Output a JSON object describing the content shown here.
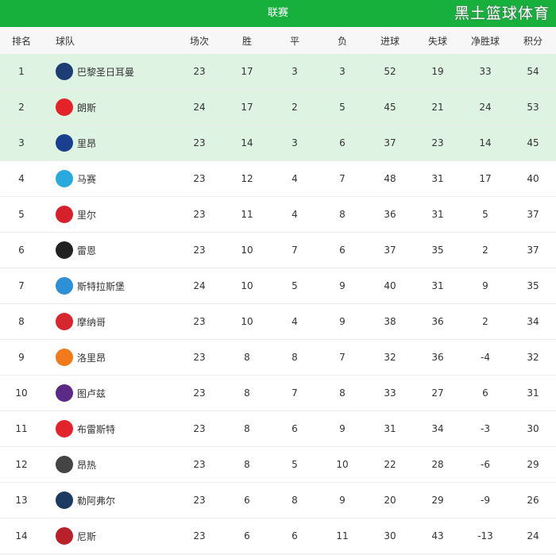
{
  "title": "联赛",
  "columns": [
    "排名",
    "球队",
    "场次",
    "胜",
    "平",
    "负",
    "进球",
    "失球",
    "净胜球",
    "积分"
  ],
  "rows": [
    {
      "rank": "1",
      "team": "巴黎圣日耳曼",
      "logo_color": "#1c3e74",
      "played": "23",
      "w": "17",
      "d": "3",
      "l": "3",
      "gf": "52",
      "ga": "19",
      "gd": "33",
      "pts": "54"
    },
    {
      "rank": "2",
      "team": "朗斯",
      "logo_color": "#e3222a",
      "played": "24",
      "w": "17",
      "d": "2",
      "l": "5",
      "gf": "45",
      "ga": "21",
      "gd": "24",
      "pts": "53"
    },
    {
      "rank": "3",
      "team": "里昂",
      "logo_color": "#1a3f8f",
      "played": "23",
      "w": "14",
      "d": "3",
      "l": "6",
      "gf": "37",
      "ga": "23",
      "gd": "14",
      "pts": "45"
    },
    {
      "rank": "4",
      "team": "马赛",
      "logo_color": "#2aa9e0",
      "played": "23",
      "w": "12",
      "d": "4",
      "l": "7",
      "gf": "48",
      "ga": "31",
      "gd": "17",
      "pts": "40"
    },
    {
      "rank": "5",
      "team": "里尔",
      "logo_color": "#d6202b",
      "played": "23",
      "w": "11",
      "d": "4",
      "l": "8",
      "gf": "36",
      "ga": "31",
      "gd": "5",
      "pts": "37"
    },
    {
      "rank": "6",
      "team": "雷恩",
      "logo_color": "#222222",
      "played": "23",
      "w": "10",
      "d": "7",
      "l": "6",
      "gf": "37",
      "ga": "35",
      "gd": "2",
      "pts": "37"
    },
    {
      "rank": "7",
      "team": "斯特拉斯堡",
      "logo_color": "#2d8fd5",
      "played": "24",
      "w": "10",
      "d": "5",
      "l": "9",
      "gf": "40",
      "ga": "31",
      "gd": "9",
      "pts": "35"
    },
    {
      "rank": "8",
      "team": "摩纳哥",
      "logo_color": "#d8262e",
      "played": "23",
      "w": "10",
      "d": "4",
      "l": "9",
      "gf": "38",
      "ga": "36",
      "gd": "2",
      "pts": "34"
    },
    {
      "rank": "9",
      "team": "洛里昂",
      "logo_color": "#f27a1a",
      "played": "23",
      "w": "8",
      "d": "8",
      "l": "7",
      "gf": "32",
      "ga": "36",
      "gd": "-4",
      "pts": "32"
    },
    {
      "rank": "10",
      "team": "图卢兹",
      "logo_color": "#5b2a86",
      "played": "23",
      "w": "8",
      "d": "7",
      "l": "8",
      "gf": "33",
      "ga": "27",
      "gd": "6",
      "pts": "31"
    },
    {
      "rank": "11",
      "team": "布雷斯特",
      "logo_color": "#e2232b",
      "played": "23",
      "w": "8",
      "d": "6",
      "l": "9",
      "gf": "31",
      "ga": "34",
      "gd": "-3",
      "pts": "30"
    },
    {
      "rank": "12",
      "team": "昂热",
      "logo_color": "#444444",
      "played": "23",
      "w": "8",
      "d": "5",
      "l": "10",
      "gf": "22",
      "ga": "28",
      "gd": "-6",
      "pts": "29"
    },
    {
      "rank": "13",
      "team": "勒阿弗尔",
      "logo_color": "#1d3b62",
      "played": "23",
      "w": "6",
      "d": "8",
      "l": "9",
      "gf": "20",
      "ga": "29",
      "gd": "-9",
      "pts": "26"
    },
    {
      "rank": "14",
      "team": "尼斯",
      "logo_color": "#b8202a",
      "played": "23",
      "w": "6",
      "d": "6",
      "l": "11",
      "gf": "30",
      "ga": "43",
      "gd": "-13",
      "pts": "24"
    }
  ],
  "highlight_top": 3,
  "highlight_color": "#def3e1",
  "accent": "#17b03d",
  "watermark": "黑土篮球体育"
}
